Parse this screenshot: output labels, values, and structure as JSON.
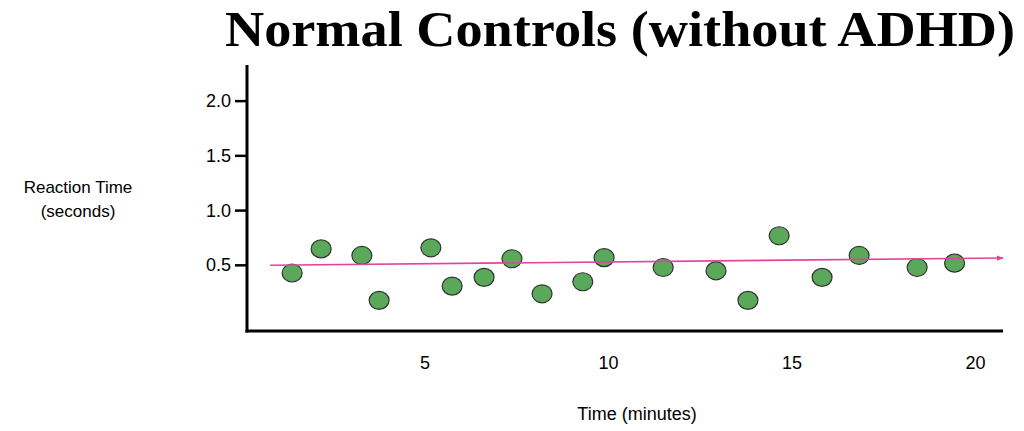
{
  "chart_data": {
    "type": "scatter",
    "title": "Normal Controls (without ADHD)",
    "xlabel": "Time (minutes)",
    "ylabel": [
      "Reaction Time",
      "(seconds)"
    ],
    "xlim": [
      0.15,
      20.75
    ],
    "ylim": [
      -0.1,
      2.33
    ],
    "xticks": [
      5,
      10,
      15,
      20
    ],
    "yticks": [
      0.5,
      {
        "value": 1.0,
        "label": "1.0"
      },
      1.5,
      {
        "value": 2.0,
        "label": "2.0"
      }
    ],
    "grid": false,
    "series": [
      {
        "type": "scatter",
        "color": "#5aa85a",
        "marker": "circle",
        "x": [
          1.38,
          2.17,
          3.28,
          3.75,
          5.16,
          5.74,
          6.61,
          7.37,
          8.19,
          9.3,
          9.88,
          11.49,
          12.93,
          13.8,
          14.65,
          15.82,
          16.83,
          18.41,
          19.43
        ],
        "values": [
          0.43,
          0.65,
          0.59,
          0.18,
          0.66,
          0.31,
          0.39,
          0.56,
          0.24,
          0.35,
          0.57,
          0.48,
          0.45,
          0.18,
          0.77,
          0.39,
          0.59,
          0.48,
          0.52
        ]
      },
      {
        "type": "line",
        "color": "#e0459c",
        "marker": "arrow",
        "x": [
          0.78,
          20.75
        ],
        "values": [
          0.5,
          0.567
        ]
      }
    ]
  }
}
